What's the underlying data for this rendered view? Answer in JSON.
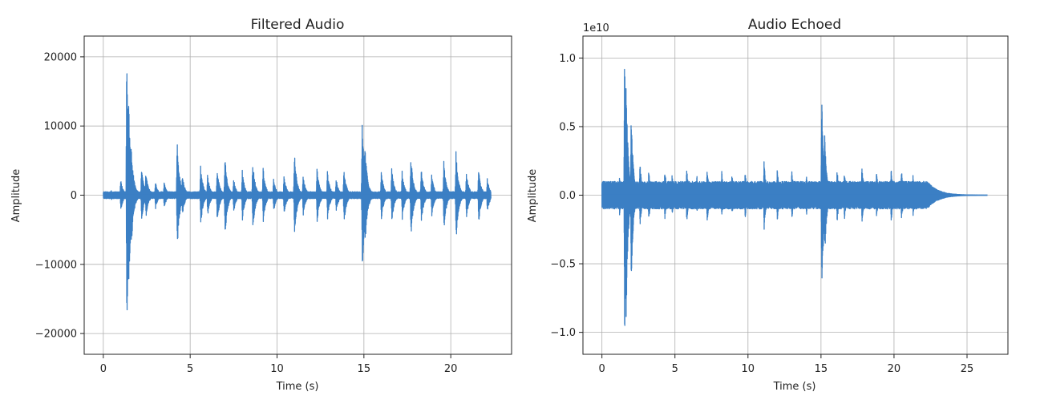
{
  "chart_data": [
    {
      "type": "line",
      "title": "Filtered Audio",
      "xlabel": "Time (s)",
      "ylabel": "Amplitude",
      "xlim": [
        -1.1,
        23.5
      ],
      "ylim": [
        -23000,
        23000
      ],
      "xticks": [
        0,
        5,
        10,
        15,
        20
      ],
      "xtick_labels": [
        "0",
        "5",
        "10",
        "15",
        "20"
      ],
      "yticks": [
        -20000,
        -10000,
        0,
        10000,
        20000
      ],
      "ytick_labels": [
        "−20000",
        "−10000",
        "0",
        "10000",
        "20000"
      ],
      "offset_label": "",
      "grid": true,
      "line_color": "#3b7fc4",
      "series": [
        {
          "duration": 22.3,
          "sample_step": 0.02,
          "noise_level": 500,
          "bursts": [
            {
              "t": 0.45,
              "amp": 700
            },
            {
              "t": 1.0,
              "amp": 2300
            },
            {
              "t": 1.35,
              "amp": 20600
            },
            {
              "t": 1.45,
              "amp": 15000
            },
            {
              "t": 1.6,
              "amp": 8000
            },
            {
              "t": 2.2,
              "amp": 4000
            },
            {
              "t": 2.45,
              "amp": 3500
            },
            {
              "t": 3.0,
              "amp": 2000
            },
            {
              "t": 3.5,
              "amp": 2000
            },
            {
              "t": 4.25,
              "amp": 7800
            },
            {
              "t": 4.55,
              "amp": 3000
            },
            {
              "t": 5.6,
              "amp": 4300
            },
            {
              "t": 6.0,
              "amp": 3000
            },
            {
              "t": 6.55,
              "amp": 4000
            },
            {
              "t": 7.0,
              "amp": 6000
            },
            {
              "t": 7.5,
              "amp": 2500
            },
            {
              "t": 8.0,
              "amp": 3600
            },
            {
              "t": 8.6,
              "amp": 5000
            },
            {
              "t": 9.2,
              "amp": 4000
            },
            {
              "t": 9.8,
              "amp": 2500
            },
            {
              "t": 10.4,
              "amp": 3000
            },
            {
              "t": 11.0,
              "amp": 6200
            },
            {
              "t": 11.5,
              "amp": 3000
            },
            {
              "t": 12.3,
              "amp": 4000
            },
            {
              "t": 12.9,
              "amp": 3500
            },
            {
              "t": 13.4,
              "amp": 2500
            },
            {
              "t": 13.85,
              "amp": 4000
            },
            {
              "t": 14.9,
              "amp": 11000
            },
            {
              "t": 15.05,
              "amp": 8000
            },
            {
              "t": 16.0,
              "amp": 3500
            },
            {
              "t": 16.6,
              "amp": 4000
            },
            {
              "t": 17.2,
              "amp": 3500
            },
            {
              "t": 17.7,
              "amp": 6000
            },
            {
              "t": 18.3,
              "amp": 4000
            },
            {
              "t": 18.9,
              "amp": 3000
            },
            {
              "t": 19.6,
              "amp": 5000
            },
            {
              "t": 20.3,
              "amp": 6500
            },
            {
              "t": 20.9,
              "amp": 3500
            },
            {
              "t": 21.6,
              "amp": 4000
            },
            {
              "t": 22.1,
              "amp": 2500
            }
          ]
        }
      ]
    },
    {
      "type": "line",
      "title": "Audio Echoed",
      "xlabel": "Time (s)",
      "ylabel": "Amplitude",
      "xlim": [
        -1.3,
        27.8
      ],
      "ylim": [
        -11600000000.0,
        11600000000.0
      ],
      "xticks": [
        0,
        5,
        10,
        15,
        20,
        25
      ],
      "xtick_labels": [
        "0",
        "5",
        "10",
        "15",
        "20",
        "25"
      ],
      "yticks": [
        -10000000000.0,
        -5000000000.0,
        0,
        5000000000.0,
        10000000000.0
      ],
      "ytick_labels": [
        "−1.0",
        "−0.5",
        "0.0",
        "0.5",
        "1.0"
      ],
      "offset_label": "1e10",
      "grid": true,
      "line_color": "#3b7fc4",
      "series": [
        {
          "duration": 26.4,
          "sample_step": 0.015,
          "tail_start": 22.3,
          "noise_level": 1000000000.0,
          "bursts": [
            {
              "t": 0.6,
              "amp": 800000000.0
            },
            {
              "t": 1.2,
              "amp": 1500000000.0
            },
            {
              "t": 1.55,
              "amp": 10700000000.0
            },
            {
              "t": 1.65,
              "amp": 9000000000.0
            },
            {
              "t": 2.0,
              "amp": 6500000000.0
            },
            {
              "t": 2.6,
              "amp": 2500000000.0
            },
            {
              "t": 3.2,
              "amp": 2000000000.0
            },
            {
              "t": 4.3,
              "amp": 2000000000.0
            },
            {
              "t": 4.8,
              "amp": 1500000000.0
            },
            {
              "t": 5.8,
              "amp": 2000000000.0
            },
            {
              "t": 6.5,
              "amp": 1500000000.0
            },
            {
              "t": 7.2,
              "amp": 2000000000.0
            },
            {
              "t": 8.2,
              "amp": 1800000000.0
            },
            {
              "t": 8.9,
              "amp": 1500000000.0
            },
            {
              "t": 9.8,
              "amp": 1800000000.0
            },
            {
              "t": 11.1,
              "amp": 2500000000.0
            },
            {
              "t": 12.0,
              "amp": 2000000000.0
            },
            {
              "t": 13.0,
              "amp": 1800000000.0
            },
            {
              "t": 14.0,
              "amp": 1500000000.0
            },
            {
              "t": 15.05,
              "amp": 7500000000.0
            },
            {
              "t": 15.25,
              "amp": 4500000000.0
            },
            {
              "t": 16.1,
              "amp": 2000000000.0
            },
            {
              "t": 16.6,
              "amp": 1800000000.0
            },
            {
              "t": 17.8,
              "amp": 2200000000.0
            },
            {
              "t": 18.8,
              "amp": 1800000000.0
            },
            {
              "t": 19.8,
              "amp": 2000000000.0
            },
            {
              "t": 20.5,
              "amp": 2000000000.0
            },
            {
              "t": 21.3,
              "amp": 1500000000.0
            },
            {
              "t": 22.0,
              "amp": 1000000000.0
            }
          ]
        }
      ]
    }
  ]
}
